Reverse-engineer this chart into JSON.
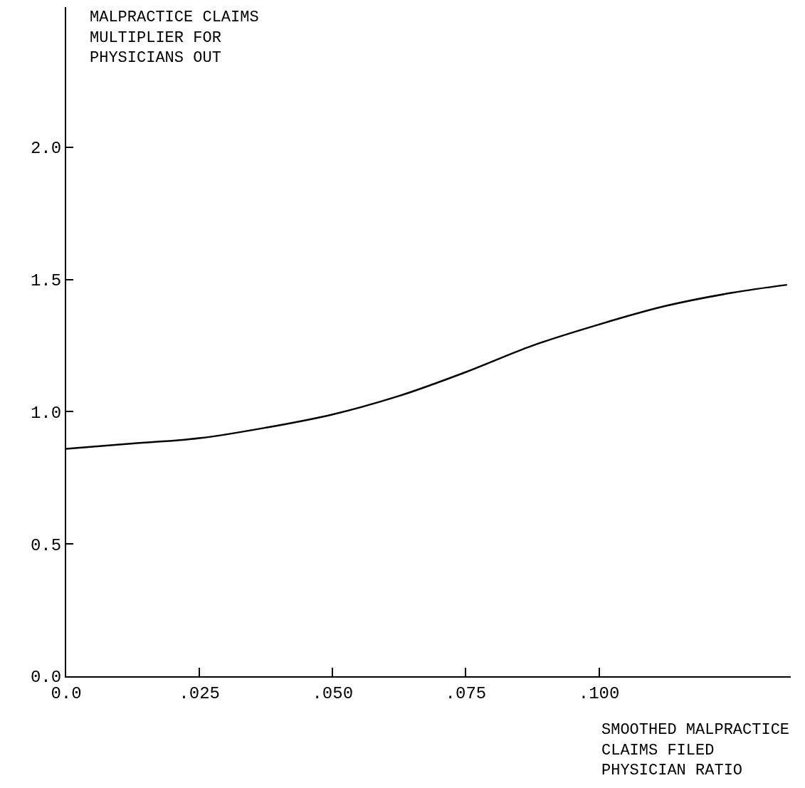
{
  "chart_data": {
    "type": "line",
    "xlabel": "SMOOTHED MALPRACTICE\nCLAIMS FILED\nPHYSICIAN RATIO",
    "ylabel": "MALPRACTICE CLAIMS\nMULTIPLIER FOR\nPHYSICIANS OUT",
    "x": [
      0,
      0.0125,
      0.025,
      0.0375,
      0.05,
      0.0625,
      0.075,
      0.0875,
      0.1,
      0.1125,
      0.125,
      0.1353
    ],
    "series": [
      {
        "color": "#000000",
        "values": [
          0.86,
          0.88,
          0.9,
          0.94,
          0.99,
          1.06,
          1.15,
          1.25,
          1.33,
          1.4,
          1.45,
          1.48
        ]
      }
    ],
    "xlim": [
      0,
      0.136
    ],
    "ylim": [
      0,
      2.53
    ],
    "xticks": [
      {
        "value": 0,
        "label": "0.0"
      },
      {
        "value": 0.025,
        "label": ".025"
      },
      {
        "value": 0.05,
        "label": ".050"
      },
      {
        "value": 0.075,
        "label": ".075"
      },
      {
        "value": 0.1,
        "label": ".100"
      }
    ],
    "yticks": [
      {
        "value": 0,
        "label": "0.0"
      },
      {
        "value": 0.5,
        "label": "0.5"
      },
      {
        "value": 1.0,
        "label": "1.0"
      },
      {
        "value": 1.5,
        "label": "1.5"
      },
      {
        "value": 2.0,
        "label": "2.0"
      }
    ],
    "marker": "none",
    "line_style": "solid"
  }
}
